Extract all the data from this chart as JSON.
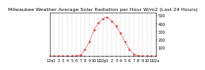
{
  "title": "Milwaukee Weather Average Solar Radiation per Hour W/m2 (Last 24 Hours)",
  "hours": [
    0,
    1,
    2,
    3,
    4,
    5,
    6,
    7,
    8,
    9,
    10,
    11,
    12,
    13,
    14,
    15,
    16,
    17,
    18,
    19,
    20,
    21,
    22,
    23,
    24
  ],
  "values": [
    0,
    0,
    0,
    0,
    0,
    0,
    2,
    15,
    80,
    180,
    320,
    410,
    460,
    480,
    430,
    370,
    280,
    180,
    80,
    20,
    3,
    0,
    0,
    0,
    0
  ],
  "line_color": "#FF0000",
  "bg_color": "#FFFFFF",
  "plot_bg": "#FFFFFF",
  "grid_color": "#888888",
  "ylim": [
    0,
    540
  ],
  "yticks": [
    100,
    200,
    300,
    400,
    500
  ],
  "xlim": [
    0,
    24
  ],
  "x_labels": [
    "12a",
    "1",
    "2",
    "3",
    "4",
    "5",
    "6",
    "7",
    "8",
    "9",
    "10",
    "11",
    "12p",
    "1",
    "2",
    "3",
    "4",
    "5",
    "6",
    "7",
    "8",
    "9",
    "10",
    "11",
    "12a"
  ],
  "title_fontsize": 4.5,
  "tick_fontsize": 3.5,
  "line_width": 0.8,
  "marker_size": 1.2
}
